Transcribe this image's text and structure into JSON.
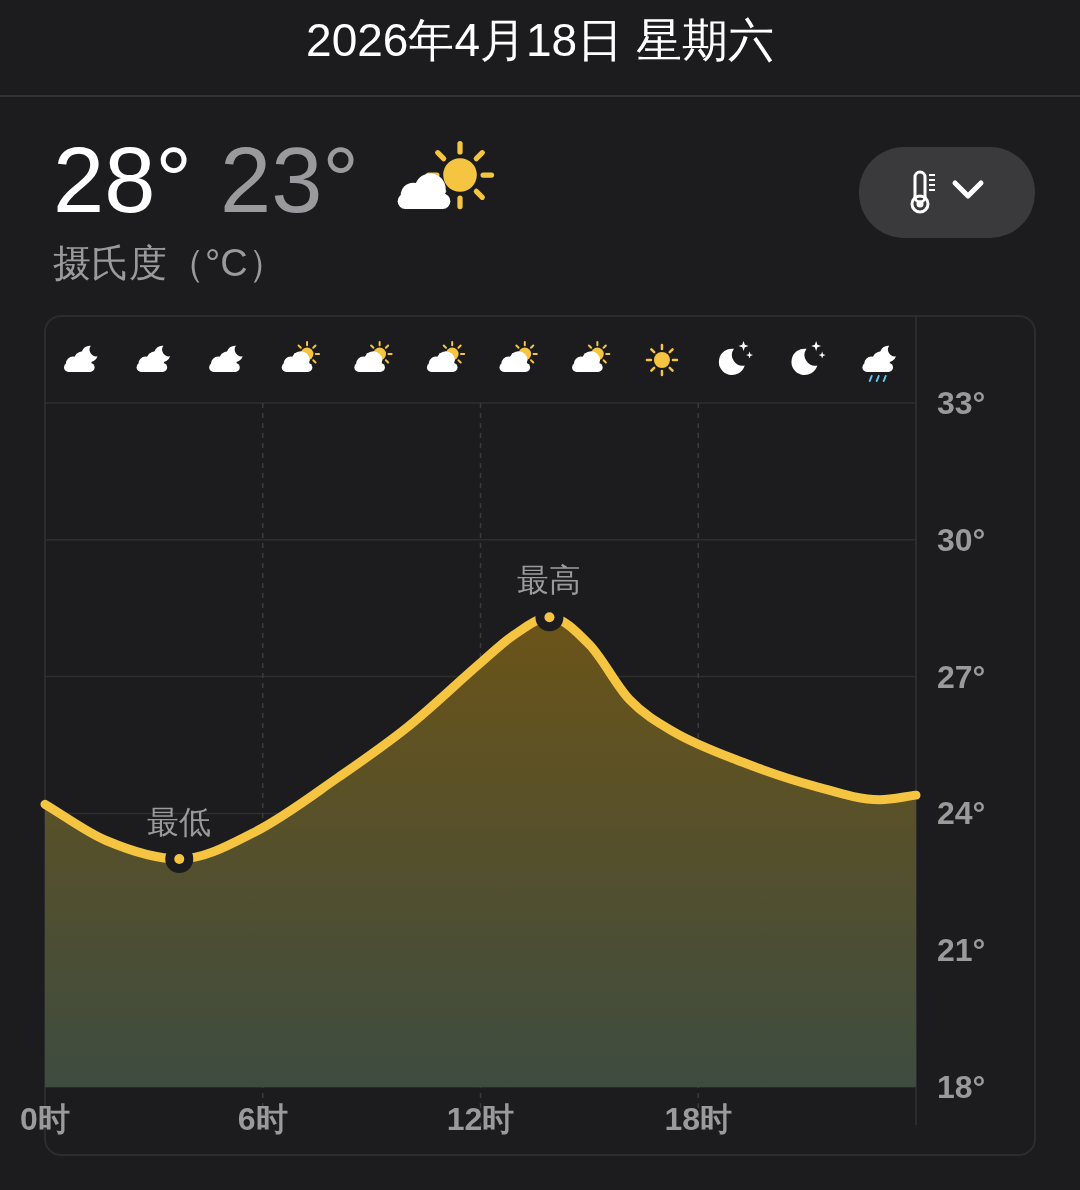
{
  "chart_data": {
    "type": "area",
    "title": "2026年4月18日 星期六",
    "subtitle": "摄氏度（°C）",
    "annotations": [
      "28°",
      "23°",
      {
        "text": "最高",
        "x": 13.9,
        "y": 28.3
      },
      {
        "text": "最低",
        "x": 3.7,
        "y": 23.0
      }
    ],
    "x": [
      0,
      1.7,
      3.7,
      5.8,
      8.1,
      10.0,
      12.0,
      12.9,
      13.9,
      15.0,
      16.1,
      17.3,
      19.3,
      21.2,
      23.0,
      24.0
    ],
    "values": [
      24.2,
      23.4,
      23.0,
      23.6,
      24.8,
      25.9,
      27.3,
      27.9,
      28.3,
      27.7,
      26.5,
      25.8,
      25.1,
      24.6,
      24.3,
      24.4
    ],
    "color": "#f5c542",
    "xlim": [
      0,
      24
    ],
    "xticks": [
      {
        "value": 0,
        "label": "0时"
      },
      {
        "value": 6,
        "label": "6时"
      },
      {
        "value": 12,
        "label": "12时"
      },
      {
        "value": 18,
        "label": "18时"
      }
    ],
    "ylim": [
      18,
      33
    ],
    "yticks": [
      {
        "value": 18,
        "label": "18°"
      },
      {
        "value": 21,
        "label": "21°"
      },
      {
        "value": 24,
        "label": "24°"
      },
      {
        "value": 27,
        "label": "27°"
      },
      {
        "value": 30,
        "label": "30°"
      },
      {
        "value": 33,
        "label": "33°"
      }
    ],
    "grid": true
  }
}
